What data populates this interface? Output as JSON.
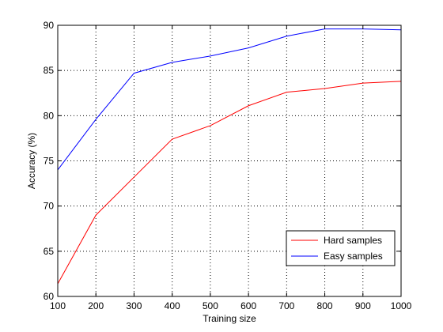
{
  "chart_data": {
    "type": "line",
    "xlabel": "Training size",
    "ylabel": "Accuracy (%)",
    "xlim": [
      100,
      1000
    ],
    "ylim": [
      60,
      90
    ],
    "x_ticks": [
      100,
      200,
      300,
      400,
      500,
      600,
      700,
      800,
      900,
      1000
    ],
    "y_ticks": [
      60,
      65,
      70,
      75,
      80,
      85,
      90
    ],
    "grid": true,
    "grid_style": "dotted",
    "legend_position": "bottom-right",
    "x": [
      100,
      200,
      300,
      400,
      500,
      600,
      700,
      800,
      900,
      1000
    ],
    "series": [
      {
        "name": "Hard samples",
        "color": "#ff0000",
        "values": [
          61.4,
          69.0,
          73.2,
          77.4,
          78.9,
          81.1,
          82.6,
          83.0,
          83.6,
          83.8
        ]
      },
      {
        "name": "Easy samples",
        "color": "#0000ff",
        "values": [
          74.0,
          79.6,
          84.7,
          85.9,
          86.6,
          87.5,
          88.8,
          89.6,
          89.6,
          89.5
        ]
      }
    ]
  }
}
